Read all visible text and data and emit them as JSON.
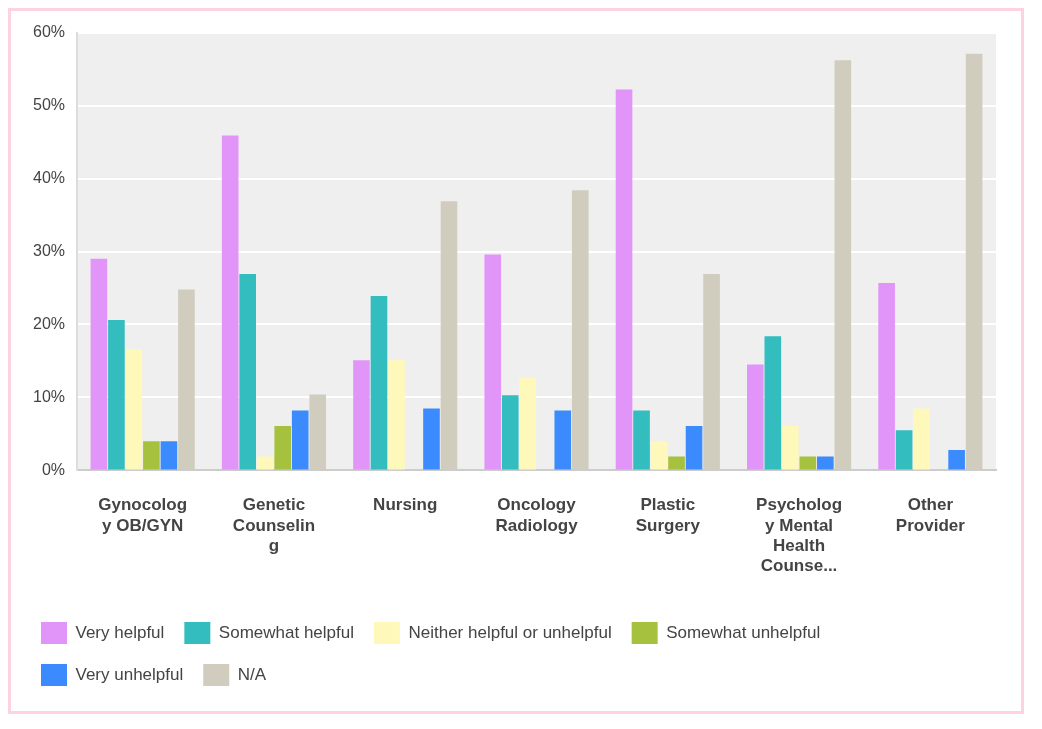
{
  "chart_data": {
    "type": "bar",
    "categories": [
      "Gynocolog\ny OB/GYN",
      "Genetic\nCounselin\ng",
      "Nursing",
      "Oncology\nRadiology",
      "Plastic\nSurgery",
      "Psycholog\ny Mental\nHealth\nCounse...",
      "Other\nProvider"
    ],
    "series": [
      {
        "name": "Very helpful",
        "color": "#e295f9",
        "values": [
          29.0,
          45.9,
          15.1,
          29.6,
          52.2,
          14.5,
          25.7
        ]
      },
      {
        "name": "Somewhat helpful",
        "color": "#33bdbf",
        "values": [
          20.6,
          26.9,
          23.9,
          10.3,
          8.2,
          18.4,
          5.5
        ]
      },
      {
        "name": "Neither helpful or unhelpful",
        "color": "#fef9bb",
        "values": [
          16.6,
          1.9,
          15.1,
          12.7,
          4.0,
          6.1,
          8.5
        ]
      },
      {
        "name": "Somewhat unhelpful",
        "color": "#a6c13d",
        "values": [
          4.0,
          6.1,
          0,
          0,
          1.9,
          1.9,
          0
        ]
      },
      {
        "name": "Very unhelpful",
        "color": "#3b8bfe",
        "values": [
          4.0,
          8.2,
          8.5,
          8.2,
          6.1,
          1.9,
          2.8
        ]
      },
      {
        "name": "N/A",
        "color": "#d0cdbe",
        "values": [
          24.8,
          10.4,
          36.9,
          38.4,
          26.9,
          56.2,
          57.1
        ]
      }
    ],
    "ylim": [
      0,
      60
    ],
    "yticks": [
      {
        "value": 0,
        "label": "0%"
      },
      {
        "value": 10,
        "label": "10%"
      },
      {
        "value": 20,
        "label": "20%"
      },
      {
        "value": 30,
        "label": "30%"
      },
      {
        "value": 40,
        "label": "40%"
      },
      {
        "value": 50,
        "label": "50%"
      },
      {
        "value": 60,
        "label": "60%"
      }
    ],
    "grid": "y",
    "legend": "bottom"
  }
}
